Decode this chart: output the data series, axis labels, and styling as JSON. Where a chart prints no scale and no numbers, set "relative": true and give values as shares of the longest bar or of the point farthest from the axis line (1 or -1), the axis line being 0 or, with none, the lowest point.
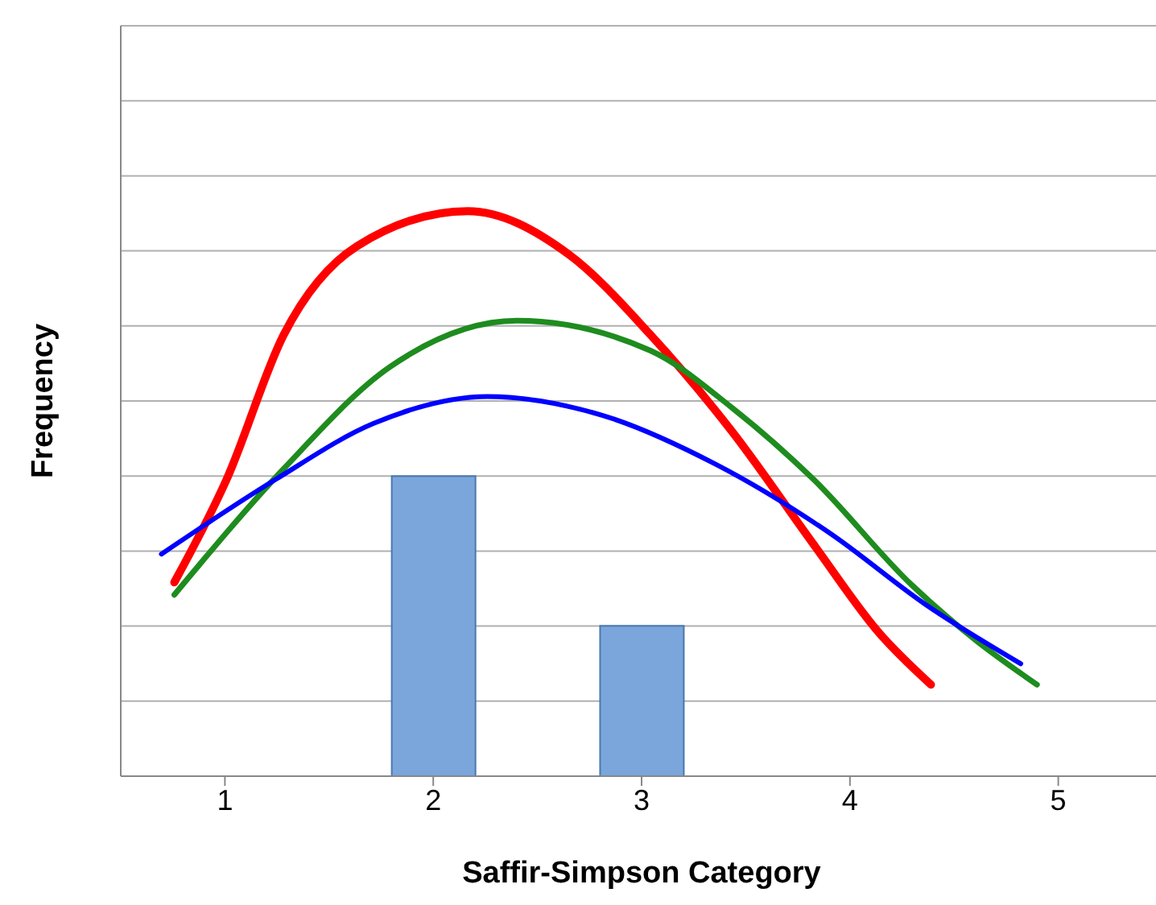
{
  "chart_data": {
    "type": "bar",
    "xlabel": "Saffir-Simpson Category",
    "ylabel": "Frequency",
    "relative": true,
    "xlim": [
      0.5,
      5.5
    ],
    "xticks": [
      1,
      2,
      3,
      4,
      5
    ],
    "grid": "y",
    "legend": false,
    "series": [
      {
        "color": "#7aa6dc",
        "x": [
          2,
          3
        ],
        "values": [
          0.531,
          0.266
        ]
      },
      {
        "type": "line",
        "color": "#ff0000",
        "x": [
          0.757,
          1.008,
          1.282,
          1.634,
          2.166,
          2.652,
          3.043,
          3.434,
          3.826,
          4.139,
          4.389
        ],
        "values": [
          0.343,
          0.525,
          0.781,
          0.938,
          1,
          0.923,
          0.781,
          0.61,
          0.41,
          0.254,
          0.162
        ]
      },
      {
        "type": "line",
        "color": "#1e8c1e",
        "x": [
          0.757,
          1.282,
          1.791,
          2.401,
          3.043,
          3.434,
          3.826,
          4.295,
          4.609,
          4.898
        ],
        "values": [
          0.321,
          0.544,
          0.724,
          0.806,
          0.753,
          0.652,
          0.525,
          0.339,
          0.239,
          0.162
        ]
      },
      {
        "type": "line",
        "color": "#0000ff",
        "x": [
          0.695,
          1.243,
          1.712,
          2.26,
          2.808,
          3.356,
          3.904,
          4.374,
          4.82
        ],
        "values": [
          0.393,
          0.525,
          0.624,
          0.672,
          0.639,
          0.552,
          0.43,
          0.301,
          0.199
        ]
      }
    ],
    "marker": "none"
  }
}
